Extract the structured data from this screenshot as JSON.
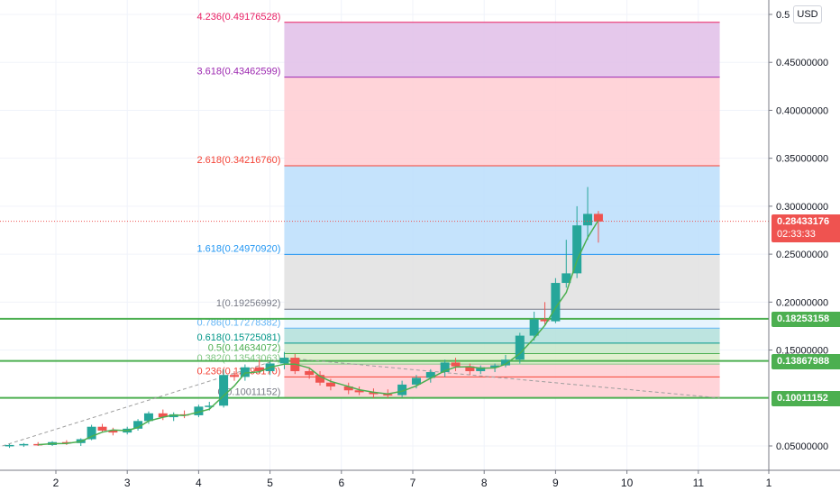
{
  "currency_badge": "USD",
  "chart_data": {
    "type": "candlestick",
    "title": "",
    "xlabel": "",
    "ylabel": "",
    "x_ticks": [
      "2",
      "3",
      "4",
      "5",
      "6",
      "7",
      "8",
      "9",
      "10",
      "11",
      "1"
    ],
    "y_ticks": [
      "0.5",
      "0.45000000",
      "0.40000000",
      "0.35000000",
      "0.30000000",
      "0.25000000",
      "0.20000000",
      "0.15000000",
      "0.05000000"
    ],
    "ylim": [
      0.0,
      0.5
    ],
    "xlim": [
      1.25,
      12.0
    ],
    "grid": true,
    "colors": {
      "up": "#26a69a",
      "down": "#ef5350",
      "price_line": "#ef5350",
      "support": "#4caf50",
      "ma": "#4caf50",
      "trend": "#9e9e9e"
    },
    "last_price": {
      "value": "0.28433176",
      "countdown": "02:33:33"
    },
    "support_levels": [
      {
        "value": 0.18253158,
        "label": "0.18253158"
      },
      {
        "value": 0.13867988,
        "label": "0.13867988"
      },
      {
        "value": 0.10011152,
        "label": "0.10011152"
      }
    ],
    "fibonacci": {
      "x_start": 5.2,
      "x_end": 11.3,
      "levels": [
        {
          "ratio": "4.236",
          "value": 0.49176528,
          "label": "4.236(0.49176528)",
          "color": "#e91e63",
          "fill": "#f8bbd0"
        },
        {
          "ratio": "3.618",
          "value": 0.43462599,
          "label": "3.618(0.43462599)",
          "color": "#9c27b0",
          "fill": "#e1bee7"
        },
        {
          "ratio": "2.618",
          "value": 0.3421676,
          "label": "2.618(0.34216760)",
          "color": "#f44336",
          "fill": "#ffcdd2"
        },
        {
          "ratio": "1.618",
          "value": 0.2497092,
          "label": "1.618(0.24970920)",
          "color": "#2196f3",
          "fill": "#bbdefb"
        },
        {
          "ratio": "1",
          "value": 0.19256992,
          "label": "1(0.19256992)",
          "color": "#787b86",
          "fill": "#e0e0e0"
        },
        {
          "ratio": "0.786",
          "value": 0.17278382,
          "label": "0.786(0.17278382)",
          "color": "#64b5f6",
          "fill": "#e3f2fd"
        },
        {
          "ratio": "0.618",
          "value": 0.15725081,
          "label": "0.618(0.15725081)",
          "color": "#009688",
          "fill": "#b2dfdb"
        },
        {
          "ratio": "0.5",
          "value": 0.14634072,
          "label": "0.5(0.14634072)",
          "color": "#4caf50",
          "fill": "#c8e6c9"
        },
        {
          "ratio": "0.382",
          "value": 0.13543063,
          "label": "0.382(0.13543063)",
          "color": "#81c784",
          "fill": "#dcedc8"
        },
        {
          "ratio": "0.236",
          "value": 0.1219317,
          "label": "0.236(0.12193170)",
          "color": "#f44336",
          "fill": "#ffcdd2"
        },
        {
          "ratio": "0",
          "value": 0.10011152,
          "label": "0(0.10011152)",
          "color": "#787b86",
          "fill": "#ffcdd2"
        }
      ]
    },
    "trend_line": {
      "from": [
        1.25,
        0.05
      ],
      "to": [
        5.2,
        0.142
      ],
      "continues_to": [
        11.3,
        0.1
      ]
    },
    "candles": [
      [
        1.35,
        0.05,
        0.052,
        0.048,
        0.051
      ],
      [
        1.55,
        0.051,
        0.053,
        0.049,
        0.052
      ],
      [
        1.75,
        0.052,
        0.054,
        0.05,
        0.051
      ],
      [
        1.95,
        0.051,
        0.055,
        0.05,
        0.054
      ],
      [
        2.15,
        0.054,
        0.056,
        0.051,
        0.053
      ],
      [
        2.35,
        0.053,
        0.058,
        0.05,
        0.057
      ],
      [
        2.5,
        0.057,
        0.072,
        0.056,
        0.07
      ],
      [
        2.65,
        0.07,
        0.073,
        0.064,
        0.066
      ],
      [
        2.8,
        0.066,
        0.069,
        0.061,
        0.064
      ],
      [
        3.0,
        0.064,
        0.07,
        0.062,
        0.068
      ],
      [
        3.15,
        0.068,
        0.078,
        0.066,
        0.076
      ],
      [
        3.3,
        0.076,
        0.086,
        0.073,
        0.084
      ],
      [
        3.5,
        0.084,
        0.088,
        0.077,
        0.08
      ],
      [
        3.65,
        0.08,
        0.085,
        0.076,
        0.083
      ],
      [
        3.8,
        0.083,
        0.087,
        0.079,
        0.082
      ],
      [
        4.0,
        0.082,
        0.093,
        0.08,
        0.091
      ],
      [
        4.15,
        0.091,
        0.096,
        0.087,
        0.092
      ],
      [
        4.35,
        0.092,
        0.13,
        0.09,
        0.124
      ],
      [
        4.5,
        0.124,
        0.128,
        0.118,
        0.122
      ],
      [
        4.65,
        0.122,
        0.135,
        0.118,
        0.132
      ],
      [
        4.85,
        0.132,
        0.14,
        0.126,
        0.128
      ],
      [
        5.0,
        0.128,
        0.138,
        0.124,
        0.136
      ],
      [
        5.2,
        0.136,
        0.148,
        0.13,
        0.142
      ],
      [
        5.35,
        0.142,
        0.146,
        0.125,
        0.128
      ],
      [
        5.55,
        0.128,
        0.132,
        0.12,
        0.124
      ],
      [
        5.7,
        0.124,
        0.128,
        0.113,
        0.116
      ],
      [
        5.85,
        0.116,
        0.12,
        0.108,
        0.112
      ],
      [
        6.1,
        0.112,
        0.116,
        0.104,
        0.108
      ],
      [
        6.25,
        0.108,
        0.112,
        0.103,
        0.106
      ],
      [
        6.45,
        0.106,
        0.11,
        0.1,
        0.104
      ],
      [
        6.65,
        0.104,
        0.109,
        0.1,
        0.103
      ],
      [
        6.85,
        0.103,
        0.118,
        0.101,
        0.114
      ],
      [
        7.05,
        0.114,
        0.124,
        0.11,
        0.121
      ],
      [
        7.25,
        0.121,
        0.13,
        0.116,
        0.127
      ],
      [
        7.45,
        0.127,
        0.14,
        0.122,
        0.137
      ],
      [
        7.6,
        0.137,
        0.142,
        0.128,
        0.133
      ],
      [
        7.8,
        0.133,
        0.136,
        0.124,
        0.128
      ],
      [
        7.95,
        0.128,
        0.134,
        0.125,
        0.132
      ],
      [
        8.15,
        0.132,
        0.136,
        0.127,
        0.134
      ],
      [
        8.3,
        0.134,
        0.145,
        0.132,
        0.14
      ],
      [
        8.5,
        0.14,
        0.168,
        0.136,
        0.165
      ],
      [
        8.7,
        0.165,
        0.19,
        0.16,
        0.182
      ],
      [
        8.85,
        0.182,
        0.2,
        0.176,
        0.18
      ],
      [
        9.0,
        0.18,
        0.225,
        0.178,
        0.22
      ],
      [
        9.15,
        0.22,
        0.265,
        0.215,
        0.23
      ],
      [
        9.3,
        0.23,
        0.3,
        0.225,
        0.28
      ],
      [
        9.45,
        0.28,
        0.32,
        0.265,
        0.292
      ],
      [
        9.6,
        0.292,
        0.295,
        0.262,
        0.284
      ]
    ]
  }
}
